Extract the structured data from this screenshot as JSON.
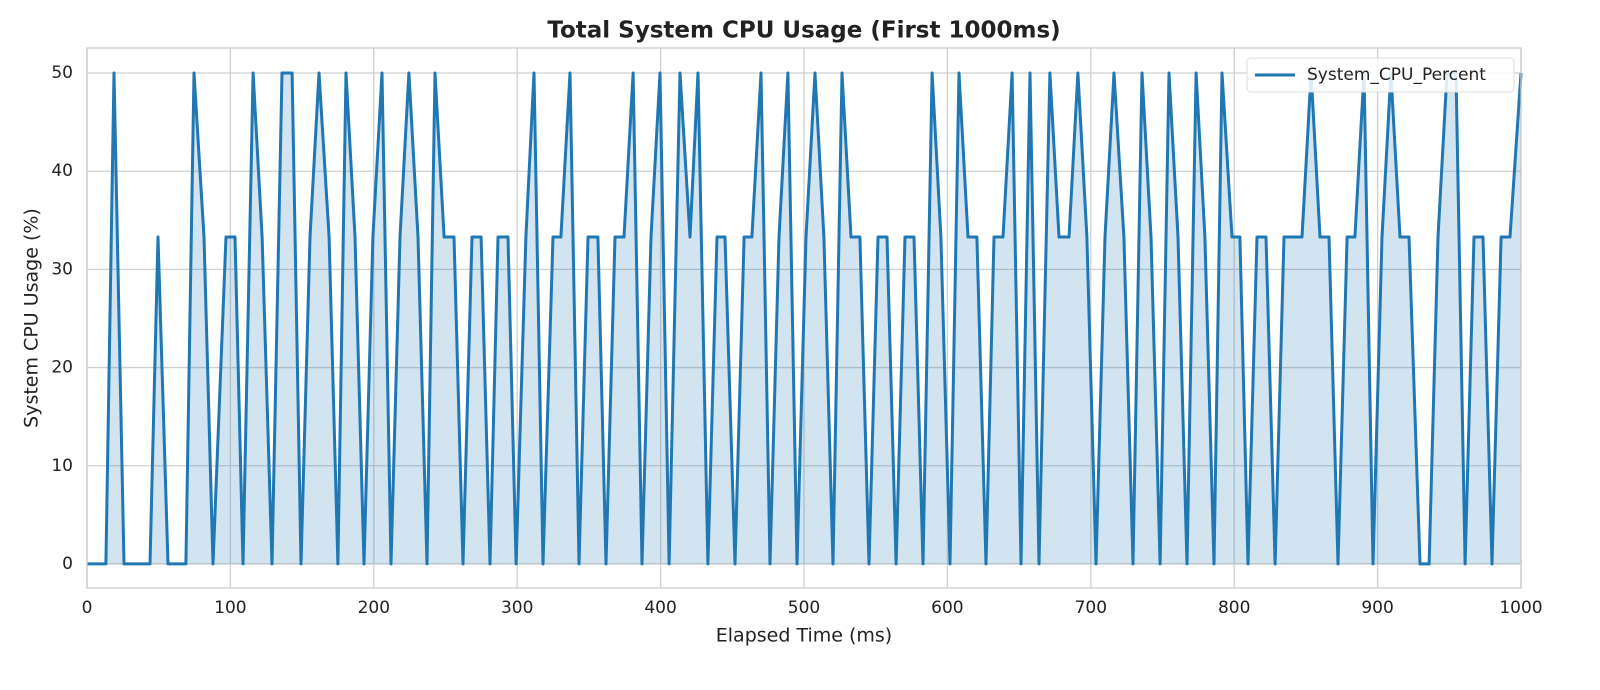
{
  "chart_data": {
    "type": "line",
    "title": "Total System CPU Usage (First 1000ms)",
    "x_label": "Elapsed Time (ms)",
    "y_label": "System CPU Usage (%)",
    "x": [
      0,
      13.2,
      18.8,
      25.8,
      43.9,
      49.5,
      56.5,
      69,
      74.6,
      81.6,
      87.9,
      96.9,
      103.2,
      108.8,
      115.8,
      122.1,
      129,
      136,
      143,
      149.2,
      155.5,
      161.8,
      168.8,
      175,
      180.6,
      186.9,
      193.2,
      199.4,
      205.7,
      212,
      218.3,
      224.5,
      230.8,
      237.1,
      242.7,
      249,
      255.9,
      262.2,
      268.5,
      274.8,
      281,
      286.6,
      293.6,
      299.2,
      306.1,
      311.7,
      318,
      325,
      330.5,
      336.8,
      343.1,
      349.4,
      356.3,
      361.9,
      368.2,
      374.5,
      380.8,
      387,
      393.3,
      399.6,
      405.9,
      413.5,
      420.5,
      426.1,
      433,
      439.3,
      444.9,
      451.9,
      458.2,
      463.7,
      470,
      476.3,
      482.6,
      488.8,
      495.1,
      501.4,
      507.7,
      513.9,
      520.2,
      526.5,
      532.8,
      539,
      545.3,
      551.6,
      557.9,
      564.2,
      570.4,
      576.7,
      583,
      589.3,
      595.5,
      601.8,
      608.1,
      614.4,
      620.6,
      626.9,
      632.5,
      638.8,
      645.1,
      651.3,
      657.6,
      663.9,
      671.5,
      677.8,
      684.8,
      691,
      697.3,
      703.6,
      709.9,
      716.2,
      723.1,
      729.4,
      735.7,
      742,
      748.3,
      754.5,
      760.8,
      767.1,
      773.4,
      779.6,
      785.9,
      791.5,
      798.5,
      804,
      809.6,
      815.9,
      822.2,
      828.5,
      834.7,
      841,
      847.3,
      853.6,
      859.8,
      866.1,
      872.4,
      878.7,
      884.2,
      890.5,
      896.8,
      903.1,
      909.3,
      915.6,
      921.9,
      929.6,
      935.9,
      942.1,
      948.4,
      954.7,
      961,
      967.2,
      973.5,
      979.8,
      986.1,
      992.3,
      1000
    ],
    "series": [
      {
        "name": "System_CPU_Percent",
        "color": "#1f77b4",
        "values": [
          0,
          0,
          50,
          0,
          0,
          33.3,
          0,
          0,
          50,
          33.3,
          0,
          33.3,
          33.3,
          0,
          50,
          33.3,
          0,
          50,
          50,
          0,
          33.3,
          50,
          33.3,
          0,
          50,
          33.3,
          0,
          33.3,
          50,
          0,
          33.3,
          50,
          33.3,
          0,
          50,
          33.3,
          33.3,
          0,
          33.3,
          33.3,
          0,
          33.3,
          33.3,
          0,
          33.3,
          50,
          0,
          33.3,
          33.3,
          50,
          0,
          33.3,
          33.3,
          0,
          33.3,
          33.3,
          50,
          0,
          33.3,
          50,
          0,
          50,
          33.3,
          50,
          0,
          33.3,
          33.3,
          0,
          33.3,
          33.3,
          50,
          0,
          33.3,
          50,
          0,
          33.3,
          50,
          33.3,
          0,
          50,
          33.3,
          33.3,
          0,
          33.3,
          33.3,
          0,
          33.3,
          33.3,
          0,
          50,
          33.3,
          0,
          50,
          33.3,
          33.3,
          0,
          33.3,
          33.3,
          50,
          0,
          50,
          0,
          50,
          33.3,
          33.3,
          50,
          33.3,
          0,
          33.3,
          50,
          33.3,
          0,
          50,
          33.3,
          0,
          50,
          33.3,
          0,
          50,
          33.3,
          0,
          50,
          33.3,
          33.3,
          0,
          33.3,
          33.3,
          0,
          33.3,
          33.3,
          33.3,
          50,
          33.3,
          33.3,
          0,
          33.3,
          33.3,
          50,
          0,
          33.3,
          50,
          33.3,
          33.3,
          0,
          0,
          33.3,
          50,
          50,
          0,
          33.3,
          33.3,
          0,
          33.3,
          33.3,
          50
        ]
      }
    ],
    "xlim": [
      0,
      1000
    ],
    "xticks": [
      0,
      100,
      200,
      300,
      400,
      500,
      600,
      700,
      800,
      900,
      1000
    ],
    "ylim": [
      -2.45,
      52.55
    ],
    "yticks": [
      0,
      10,
      20,
      30,
      40,
      50
    ],
    "grid": true,
    "fill": true,
    "legend": "upper right"
  }
}
